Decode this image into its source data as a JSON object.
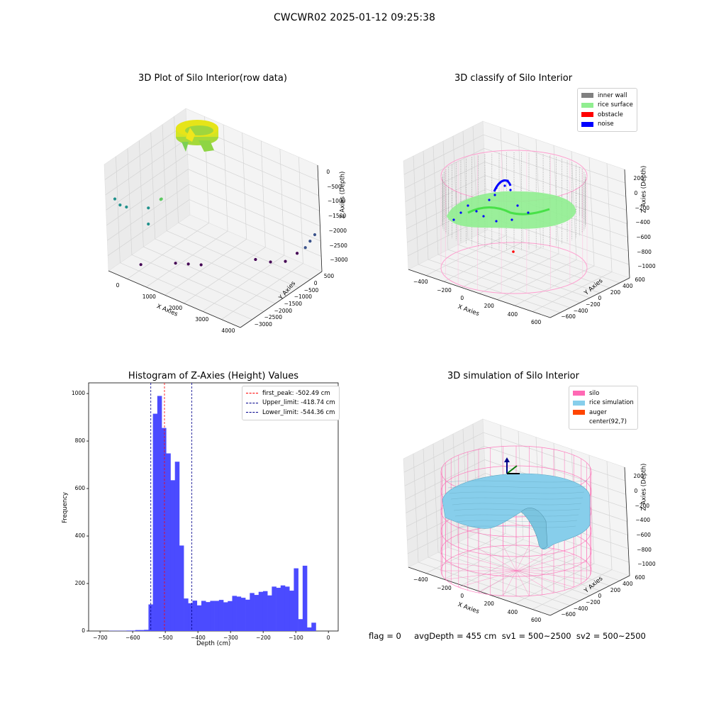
{
  "figure": {
    "suptitle": "CWCWR02 2025-01-12 09:25:38",
    "footer": "flag = 0     avgDepth = 455 cm  sv1 = 500~2500  sv2 = 500~2500"
  },
  "colors": {
    "inner_wall": "#808080",
    "rice_surface": "#90ee90",
    "obstacle": "#ff0000",
    "noise": "#0000ff",
    "silo": "#ff69b4",
    "rice_simulation": "#87ceeb",
    "auger": "#ff4500",
    "hist_bar": "#4b4bff",
    "first_peak": "#ff0000",
    "limits": "#00008b"
  },
  "chart_data": [
    {
      "type": "scatter",
      "title": "3D Plot of Silo Interior(row data)",
      "xlabel": "X Axies",
      "ylabel": "Y Axies",
      "zlabel": "Z Axies (Depth)",
      "x_ticks": [
        "0",
        "1000",
        "2000",
        "3000",
        "4000"
      ],
      "y_ticks": [
        "500",
        "0",
        "−500",
        "−1000",
        "−1500",
        "−2000",
        "−2500",
        "−3000"
      ],
      "z_ticks": [
        "0",
        "−500",
        "−1000",
        "−1500",
        "−2000",
        "−2500",
        "−3000"
      ],
      "xlim": [
        -400,
        4200
      ],
      "ylim": [
        -3200,
        700
      ],
      "zlim": [
        -3200,
        200
      ],
      "colormap": "viridis by depth",
      "points": [
        {
          "x": 300,
          "y": 100,
          "z": -3000
        },
        {
          "x": 1000,
          "y": -600,
          "z": -3000
        },
        {
          "x": 1300,
          "y": -800,
          "z": -3000
        },
        {
          "x": 1600,
          "y": -1000,
          "z": -3000
        },
        {
          "x": 3000,
          "y": -2400,
          "z": -3000
        },
        {
          "x": 3300,
          "y": -2700,
          "z": -3000
        },
        {
          "x": 2700,
          "y": -2100,
          "z": -2900
        },
        {
          "x": 3500,
          "y": -3000,
          "z": -2800
        },
        {
          "x": 3800,
          "y": -3000,
          "z": -2500
        },
        {
          "x": 3900,
          "y": -3100,
          "z": -2300
        },
        {
          "x": 4000,
          "y": -3200,
          "z": -2100
        },
        {
          "x": -200,
          "y": 300,
          "z": -1200
        },
        {
          "x": -300,
          "y": 400,
          "z": -1000
        },
        {
          "x": 100,
          "y": 400,
          "z": -1100
        },
        {
          "x": 700,
          "y": 200,
          "z": -1500
        },
        {
          "x": 800,
          "y": 300,
          "z": -900
        },
        {
          "x": 1100,
          "y": 100,
          "z": -600
        },
        {
          "x": 1200,
          "y": 200,
          "z": -500
        }
      ]
    },
    {
      "type": "scatter",
      "title": "3D classify of Silo Interior",
      "xlabel": "X Axies",
      "ylabel": "Y Axies",
      "zlabel": "Z Axies (Depth)",
      "x_ticks": [
        "−400",
        "−200",
        "0",
        "200",
        "400",
        "600"
      ],
      "y_ticks": [
        "600",
        "400",
        "200",
        "0",
        "−200",
        "−400",
        "−600"
      ],
      "z_ticks": [
        "200",
        "0",
        "−200",
        "−400",
        "−600",
        "−800",
        "−1000"
      ],
      "xlim": [
        -500,
        700
      ],
      "ylim": [
        -650,
        650
      ],
      "zlim": [
        -1000,
        300
      ],
      "legend": [
        "inner wall",
        "rice surface",
        "obstacle",
        "noise"
      ],
      "legend_position": "upper right"
    },
    {
      "type": "bar",
      "title": "Histogram of Z-Axies (Height) Values",
      "xlabel": "Depth (cm)",
      "ylabel": "Frequency",
      "xlim": [
        -735,
        30
      ],
      "ylim": [
        0,
        1045
      ],
      "x_ticks": [
        "−700",
        "−600",
        "−500",
        "−400",
        "−300",
        "−200",
        "−100",
        "0"
      ],
      "y_ticks": [
        "0",
        "200",
        "400",
        "600",
        "800",
        "1000"
      ],
      "bin_start": -700,
      "bin_width": 13.5,
      "values": [
        0,
        0,
        1,
        1,
        1,
        1,
        2,
        2,
        4,
        4,
        5,
        112,
        915,
        990,
        855,
        748,
        635,
        713,
        360,
        137,
        117,
        128,
        108,
        127,
        122,
        127,
        127,
        131,
        121,
        126,
        148,
        145,
        140,
        132,
        160,
        152,
        165,
        168,
        150,
        187,
        182,
        192,
        187,
        170,
        264,
        50,
        275,
        15,
        35
      ],
      "vlines": [
        {
          "label": "first_peak: -502.49 cm",
          "x": -502.49,
          "style": "first_peak"
        },
        {
          "label": "Upper_limit: -418.74 cm",
          "x": -418.74,
          "style": "limits"
        },
        {
          "label": "Lower_limit: -544.36 cm",
          "x": -544.36,
          "style": "limits"
        }
      ],
      "legend_position": "upper right"
    },
    {
      "type": "area",
      "title": "3D simulation of Silo Interior",
      "xlabel": "X Axies",
      "ylabel": "Y Axies",
      "zlabel": "Z Axies (Depth)",
      "x_ticks": [
        "−400",
        "−200",
        "0",
        "200",
        "400",
        "600"
      ],
      "y_ticks": [
        "600",
        "400",
        "200",
        "0",
        "−200",
        "−400",
        "−600"
      ],
      "z_ticks": [
        "200",
        "0",
        "−200",
        "−400",
        "−600",
        "−800",
        "−1000"
      ],
      "xlim": [
        -500,
        700
      ],
      "ylim": [
        -650,
        650
      ],
      "zlim": [
        -1000,
        300
      ],
      "legend": [
        "silo",
        "rice simulation",
        "auger",
        "center(92,7)"
      ],
      "legend_position": "upper right",
      "center": {
        "x": 92,
        "y": 7
      },
      "avg_depth": -455
    }
  ]
}
